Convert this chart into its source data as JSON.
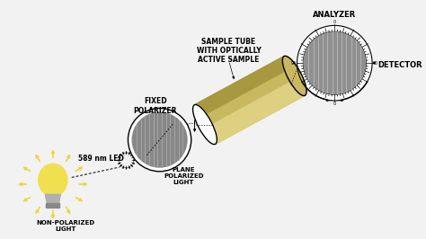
{
  "background_color": "#f2f2f2",
  "labels": {
    "led": "589 nm LED",
    "non_pol": "NON-POLARIZED\nLIGHT",
    "fixed_pol": "FIXED\nPOLARIZER",
    "plane_pol": "PLANE\nPOLARIZED\nLIGHT",
    "sample_tube": "SAMPLE TUBE\nWITH OPTICALLY\nACTIVE SAMPLE",
    "analyzer": "ANALYZER",
    "detector": "DETECTOR"
  },
  "colors": {
    "background": "#f2f2f2",
    "led_body": "#f0e050",
    "led_base": "#b0b0b0",
    "led_rays": "#e8d840",
    "polarizer_disk": "#888888",
    "tube_body": "#c8b860",
    "tube_top": "#ddd080",
    "tube_shadow": "#a89840",
    "analyzer_disk": "#909090",
    "analyzer_ring": "#ffffff",
    "black": "#000000",
    "white": "#ffffff",
    "hatch": "#aaaaaa",
    "dashed": "#444444"
  },
  "figsize": [
    4.74,
    2.66
  ],
  "dpi": 100
}
